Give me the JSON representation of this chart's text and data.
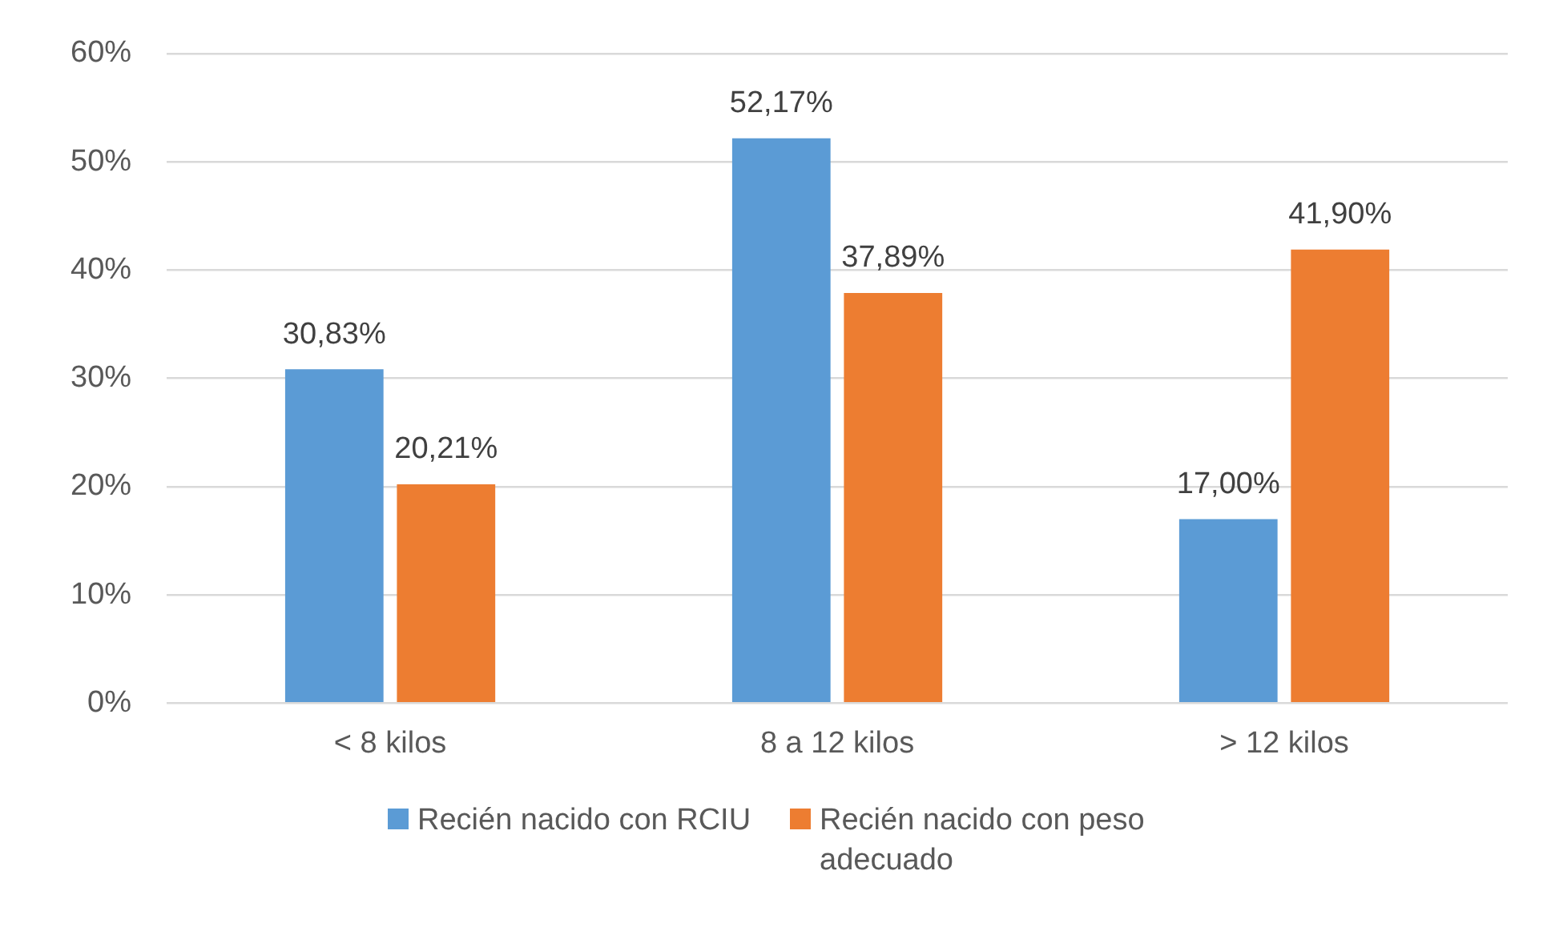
{
  "chart_data": {
    "type": "bar",
    "categories": [
      "< 8 kilos",
      "8 a 12 kilos",
      "> 12 kilos"
    ],
    "series": [
      {
        "name": "Recién nacido con RCIU",
        "color": "#5b9bd5",
        "values": [
          30.83,
          52.17,
          17.0
        ],
        "value_labels": [
          "30,83%",
          "52,17%",
          "17,00%"
        ]
      },
      {
        "name": "Recién nacido con peso adecuado",
        "color": "#ed7d31",
        "values": [
          20.21,
          37.89,
          41.9
        ],
        "value_labels": [
          "20,21%",
          "37,89%",
          "41,90%"
        ]
      }
    ],
    "ylim": [
      0,
      60
    ],
    "yticks": [
      {
        "value": 0,
        "label": "0%"
      },
      {
        "value": 10,
        "label": "10%"
      },
      {
        "value": 20,
        "label": "20%"
      },
      {
        "value": 30,
        "label": "30%"
      },
      {
        "value": 40,
        "label": "40%"
      },
      {
        "value": 50,
        "label": "50%"
      },
      {
        "value": 60,
        "label": "60%"
      }
    ],
    "grid": "y",
    "legend": "bottom"
  }
}
